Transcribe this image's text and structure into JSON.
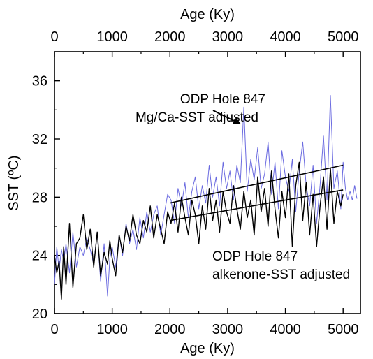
{
  "chart_data": {
    "type": "line",
    "title": "",
    "x_label_top": "Age (Ky)",
    "x_label_bottom": "Age (Ky)",
    "y_label": "SST (ºC)",
    "xlim": [
      0,
      5300
    ],
    "ylim": [
      20,
      38
    ],
    "x_ticks": [
      0,
      1000,
      2000,
      3000,
      4000,
      5000
    ],
    "y_ticks": [
      20,
      24,
      28,
      32,
      36
    ],
    "grid": false,
    "annotations": [
      {
        "name": "mgca-label",
        "lines": [
          "ODP Hole 847",
          "Mg/Ca-SST adjusted"
        ]
      },
      {
        "name": "alkenone-label",
        "lines": [
          "ODP Hole 847",
          "alkenone-SST adjusted"
        ]
      }
    ],
    "series": [
      {
        "name": "",
        "color": "#6a6ae0",
        "x": [
          0,
          40,
          80,
          120,
          160,
          200,
          260,
          320,
          380,
          440,
          500,
          560,
          620,
          680,
          740,
          800,
          860,
          920,
          960,
          1000,
          1060,
          1120,
          1180,
          1240,
          1300,
          1360,
          1420,
          1480,
          1540,
          1600,
          1660,
          1720,
          1780,
          1840,
          1900,
          1960,
          2020,
          2080,
          2140,
          2200,
          2260,
          2320,
          2380,
          2440,
          2500,
          2560,
          2620,
          2680,
          2740,
          2800,
          2860,
          2920,
          2980,
          3040,
          3100,
          3160,
          3220,
          3280,
          3340,
          3400,
          3460,
          3520,
          3580,
          3640,
          3700,
          3760,
          3820,
          3880,
          3940,
          4000,
          4060,
          4120,
          4180,
          4240,
          4300,
          4360,
          4420,
          4480,
          4540,
          4600,
          4660,
          4720,
          4780,
          4840,
          4900,
          4960,
          5000,
          5040,
          5080,
          5120,
          5160,
          5200,
          5240
        ],
        "values": [
          22.0,
          24.6,
          23.0,
          24.4,
          23.6,
          24.8,
          22.8,
          25.6,
          23.2,
          24.6,
          24.0,
          25.2,
          24.4,
          23.4,
          25.6,
          22.2,
          24.8,
          21.2,
          23.8,
          24.6,
          23.2,
          25.4,
          24.0,
          26.2,
          24.8,
          25.8,
          24.4,
          26.6,
          25.2,
          27.0,
          25.6,
          26.8,
          27.4,
          25.4,
          26.8,
          28.2,
          27.8,
          26.2,
          28.6,
          27.4,
          29.0,
          26.6,
          28.4,
          29.4,
          27.2,
          28.8,
          27.6,
          30.2,
          28.0,
          29.4,
          27.4,
          30.4,
          28.6,
          29.8,
          27.8,
          30.2,
          29.0,
          34.2,
          28.4,
          30.6,
          29.2,
          31.4,
          28.6,
          29.6,
          31.8,
          28.2,
          30.4,
          27.2,
          31.2,
          29.4,
          28.4,
          30.6,
          27.0,
          29.8,
          31.8,
          28.8,
          27.4,
          30.2,
          26.2,
          28.8,
          32.2,
          27.8,
          35.0,
          28.6,
          29.8,
          27.2,
          30.4,
          28.6,
          27.8,
          28.4,
          27.8,
          28.8,
          27.9
        ]
      },
      {
        "name": "",
        "color": "#000000",
        "x": [
          0,
          40,
          80,
          120,
          160,
          200,
          260,
          320,
          380,
          440,
          500,
          560,
          620,
          680,
          740,
          800,
          860,
          920,
          960,
          1000,
          1060,
          1120,
          1180,
          1240,
          1300,
          1360,
          1420,
          1480,
          1540,
          1600,
          1660,
          1720,
          1780,
          1840,
          1900,
          1960,
          2020,
          2080,
          2140,
          2200,
          2260,
          2320,
          2380,
          2440,
          2500,
          2560,
          2620,
          2680,
          2740,
          2800,
          2860,
          2920,
          2980,
          3040,
          3100,
          3160,
          3220,
          3280,
          3340,
          3400,
          3460,
          3520,
          3580,
          3640,
          3700,
          3760,
          3820,
          3880,
          3940,
          4000,
          4060,
          4120,
          4180,
          4240,
          4300,
          4360,
          4420,
          4480,
          4540,
          4600,
          4660,
          4720,
          4780,
          4840,
          4900,
          4960,
          5000
        ],
        "values": [
          24.0,
          22.8,
          23.6,
          21.0,
          24.6,
          22.0,
          26.2,
          21.8,
          24.8,
          25.2,
          26.8,
          24.4,
          25.8,
          23.2,
          25.6,
          22.6,
          24.2,
          23.4,
          25.0,
          23.8,
          22.6,
          25.4,
          24.2,
          26.0,
          25.0,
          26.8,
          25.4,
          24.8,
          26.4,
          25.6,
          27.4,
          25.2,
          26.8,
          25.8,
          24.8,
          27.0,
          26.2,
          27.6,
          25.6,
          28.0,
          26.6,
          25.4,
          27.8,
          26.8,
          24.8,
          27.4,
          25.8,
          28.6,
          26.4,
          27.8,
          25.6,
          28.4,
          27.0,
          26.2,
          28.8,
          27.2,
          25.8,
          28.4,
          26.6,
          27.8,
          25.4,
          29.4,
          27.0,
          28.6,
          26.0,
          29.8,
          27.2,
          25.2,
          28.4,
          26.6,
          29.6,
          24.6,
          28.8,
          30.4,
          26.4,
          29.0,
          25.4,
          28.2,
          24.6,
          27.4,
          29.4,
          25.8,
          30.0,
          26.2,
          28.4,
          27.4,
          28.2
        ]
      }
    ],
    "trendlines": [
      {
        "name": "mgca-trend",
        "x": [
          2000,
          5000
        ],
        "y": [
          27.6,
          30.2
        ]
      },
      {
        "name": "alkenone-trend",
        "x": [
          2000,
          5000
        ],
        "y": [
          26.4,
          28.5
        ]
      }
    ]
  }
}
